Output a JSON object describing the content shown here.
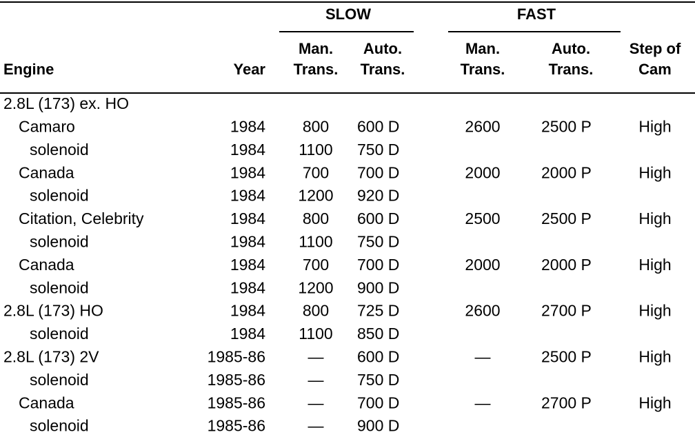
{
  "header": {
    "groups": [
      "SLOW",
      "FAST"
    ],
    "columns": [
      [
        "Engine"
      ],
      [
        "Year"
      ],
      [
        "Man.",
        "Trans."
      ],
      [
        "Auto.",
        "Trans."
      ],
      [
        "Man.",
        "Trans."
      ],
      [
        "Auto.",
        "Trans."
      ],
      [
        "Step of",
        "Cam"
      ]
    ]
  },
  "table": {
    "rows": [
      [
        "2.8L (173) ex. HO",
        null,
        null,
        null,
        null,
        null,
        null
      ],
      [
        "Camaro",
        "1984",
        "800",
        "600 D",
        "2600",
        "2500 P",
        "High"
      ],
      [
        "solenoid",
        "1984",
        "1100",
        "750 D",
        null,
        null,
        null
      ],
      [
        "Canada",
        "1984",
        "700",
        "700 D",
        "2000",
        "2000 P",
        "High"
      ],
      [
        "solenoid",
        "1984",
        "1200",
        "920 D",
        null,
        null,
        null
      ],
      [
        "Citation, Celebrity",
        "1984",
        "800",
        "600 D",
        "2500",
        "2500 P",
        "High"
      ],
      [
        "solenoid",
        "1984",
        "1100",
        "750 D",
        null,
        null,
        null
      ],
      [
        "Canada",
        "1984",
        "700",
        "700 D",
        "2000",
        "2000 P",
        "High"
      ],
      [
        "solenoid",
        "1984",
        "1200",
        "900 D",
        null,
        null,
        null
      ],
      [
        "2.8L (173) HO",
        "1984",
        "800",
        "725 D",
        "2600",
        "2700 P",
        "High"
      ],
      [
        "solenoid",
        "1984",
        "1100",
        "850 D",
        null,
        null,
        null
      ],
      [
        "2.8L (173) 2V",
        "1985-86",
        "—",
        "600 D",
        "—",
        "2500 P",
        "High"
      ],
      [
        "solenoid",
        "1985-86",
        "—",
        "750 D",
        null,
        null,
        null
      ],
      [
        "Canada",
        "1985-86",
        "—",
        "700 D",
        "—",
        "2700 P",
        "High"
      ],
      [
        "solenoid",
        "1985-86",
        "—",
        "900 D",
        null,
        null,
        null
      ]
    ]
  }
}
